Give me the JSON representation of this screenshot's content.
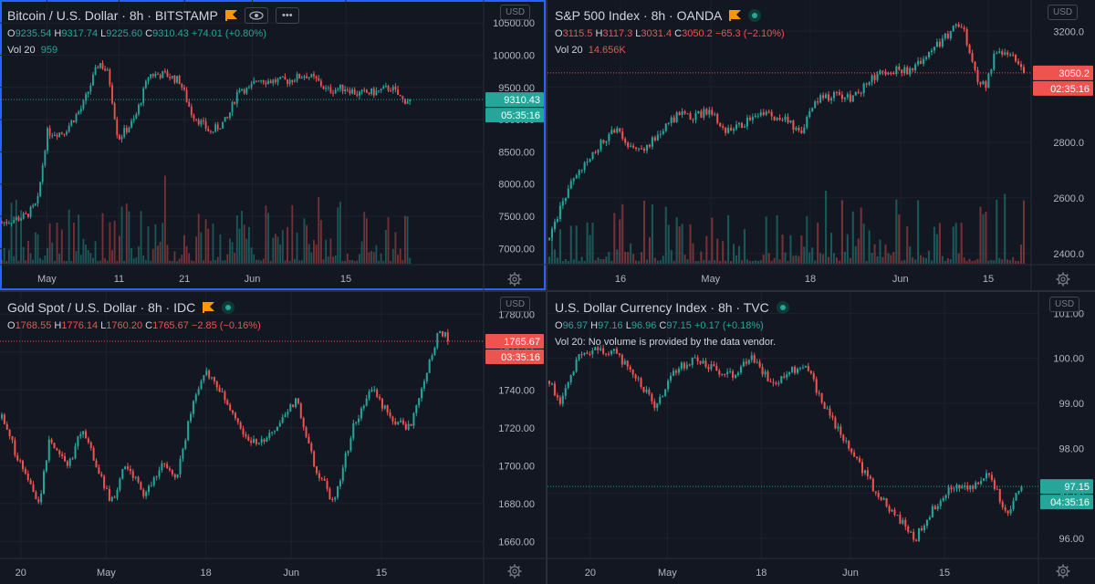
{
  "theme": {
    "background": "#131722",
    "grid": "#1e222d",
    "text": "#b2b5be",
    "up": "#26a69a",
    "down": "#ef5350",
    "active_border": "#2962ff",
    "flag": "#ff9800"
  },
  "panes": [
    {
      "title": "Bitcoin / U.S. Dollar · 8h · BITSTAMP",
      "currency": "USD",
      "icons": [
        "flag-icon",
        "eye-icon",
        "more-icon"
      ],
      "ohlc": {
        "o": "9235.54",
        "h": "9317.74",
        "l": "9225.60",
        "c": "9310.43",
        "change": "+74.01 (+0.80%)"
      },
      "volume_label": "Vol 20",
      "volume_value": "959",
      "price_label": "9310.43",
      "countdown": "05:35:16",
      "direction": "up"
    },
    {
      "title": "S&P 500 Index · 8h · OANDA",
      "currency": "USD",
      "icons": [
        "flag-icon",
        "live-icon"
      ],
      "ohlc": {
        "o": "3115.5",
        "h": "3117.3",
        "l": "3031.4",
        "c": "3050.2",
        "change": "−65.3 (−2.10%)"
      },
      "volume_label": "Vol 20",
      "volume_value": "14.656K",
      "price_label": "3050.2",
      "countdown": "02:35:16",
      "direction": "down"
    },
    {
      "title": "Gold Spot / U.S. Dollar · 8h · IDC",
      "currency": "USD",
      "icons": [
        "flag-icon",
        "live-icon"
      ],
      "ohlc": {
        "o": "1768.55",
        "h": "1776.14",
        "l": "1760.20",
        "c": "1765.67",
        "change": "−2.85 (−0.16%)"
      },
      "volume_label": "",
      "volume_value": "",
      "price_label": "1765.67",
      "countdown": "03:35:16",
      "direction": "down"
    },
    {
      "title": "U.S. Dollar Currency Index · 8h · TVC",
      "currency": "USD",
      "icons": [
        "live-icon"
      ],
      "ohlc": {
        "o": "96.97",
        "h": "97.16",
        "l": "96.96",
        "c": "97.15",
        "change": "+0.17 (+0.18%)"
      },
      "volume_label": "Vol 20: No volume is provided by the data vendor.",
      "volume_value": "",
      "price_label": "97.15",
      "countdown": "04:35:16",
      "direction": "up"
    }
  ],
  "chart_data": [
    {
      "type": "candlestick",
      "title": "Bitcoin / U.S. Dollar · 8h · BITSTAMP",
      "y_ticks": [
        7000,
        7500,
        8000,
        8500,
        9000,
        9500,
        10000,
        10500
      ],
      "y_tick_labels": [
        "7000.00",
        "7500.00",
        "8000.00",
        "8500.00",
        "9000.00",
        "9500.00",
        "10000.00",
        "10500.00"
      ],
      "ylim": [
        6750,
        10630
      ],
      "x_ticks": [
        {
          "t": 0.095,
          "label": "May"
        },
        {
          "t": 0.247,
          "label": "11"
        },
        {
          "t": 0.385,
          "label": "21"
        },
        {
          "t": 0.528,
          "label": "Jun"
        },
        {
          "t": 0.725,
          "label": "15"
        }
      ],
      "current_price": 9310.43,
      "volume": true,
      "series": [
        {
          "t": 0,
          "v": 7400
        },
        {
          "t": 0.05,
          "v": 7500
        },
        {
          "t": 0.075,
          "v": 7700
        },
        {
          "t": 0.095,
          "v": 8800
        },
        {
          "t": 0.13,
          "v": 8800
        },
        {
          "t": 0.17,
          "v": 9200
        },
        {
          "t": 0.205,
          "v": 9900
        },
        {
          "t": 0.225,
          "v": 9700
        },
        {
          "t": 0.245,
          "v": 8700
        },
        {
          "t": 0.28,
          "v": 9000
        },
        {
          "t": 0.31,
          "v": 9700
        },
        {
          "t": 0.345,
          "v": 9700
        },
        {
          "t": 0.375,
          "v": 9600
        },
        {
          "t": 0.4,
          "v": 9100
        },
        {
          "t": 0.44,
          "v": 8800
        },
        {
          "t": 0.475,
          "v": 9000
        },
        {
          "t": 0.5,
          "v": 9500
        },
        {
          "t": 0.52,
          "v": 9450
        },
        {
          "t": 0.54,
          "v": 9650
        },
        {
          "t": 0.56,
          "v": 9600
        },
        {
          "t": 0.6,
          "v": 9600
        },
        {
          "t": 0.64,
          "v": 9700
        },
        {
          "t": 0.665,
          "v": 9600
        },
        {
          "t": 0.685,
          "v": 9450
        },
        {
          "t": 0.725,
          "v": 9500
        },
        {
          "t": 0.75,
          "v": 9400
        },
        {
          "t": 0.79,
          "v": 9430
        },
        {
          "t": 0.82,
          "v": 9500
        },
        {
          "t": 0.845,
          "v": 9300
        },
        {
          "t": 0.86,
          "v": 9310
        }
      ]
    },
    {
      "type": "candlestick",
      "title": "S&P 500 Index · 8h · OANDA",
      "y_ticks": [
        2400,
        2600,
        2800,
        3000,
        3200
      ],
      "y_tick_labels": [
        "2400.0",
        "2600.0",
        "2800.0",
        "3000.0",
        "3200.0"
      ],
      "ylim": [
        2360,
        3260
      ],
      "x_ticks": [
        {
          "t": 0.15,
          "label": "16"
        },
        {
          "t": 0.34,
          "label": "May"
        },
        {
          "t": 0.55,
          "label": "18"
        },
        {
          "t": 0.74,
          "label": "Jun"
        },
        {
          "t": 0.925,
          "label": "15"
        }
      ],
      "current_price": 3050.2,
      "volume": true,
      "series": [
        {
          "t": 0,
          "v": 2450
        },
        {
          "t": 0.03,
          "v": 2600
        },
        {
          "t": 0.07,
          "v": 2720
        },
        {
          "t": 0.1,
          "v": 2780
        },
        {
          "t": 0.14,
          "v": 2850
        },
        {
          "t": 0.17,
          "v": 2780
        },
        {
          "t": 0.2,
          "v": 2780
        },
        {
          "t": 0.24,
          "v": 2850
        },
        {
          "t": 0.28,
          "v": 2910
        },
        {
          "t": 0.3,
          "v": 2890
        },
        {
          "t": 0.32,
          "v": 2900
        },
        {
          "t": 0.34,
          "v": 2920
        },
        {
          "t": 0.37,
          "v": 2830
        },
        {
          "t": 0.42,
          "v": 2880
        },
        {
          "t": 0.46,
          "v": 2900
        },
        {
          "t": 0.5,
          "v": 2880
        },
        {
          "t": 0.53,
          "v": 2830
        },
        {
          "t": 0.56,
          "v": 2950
        },
        {
          "t": 0.6,
          "v": 2970
        },
        {
          "t": 0.64,
          "v": 2960
        },
        {
          "t": 0.68,
          "v": 3030
        },
        {
          "t": 0.72,
          "v": 3060
        },
        {
          "t": 0.76,
          "v": 3060
        },
        {
          "t": 0.8,
          "v": 3120
        },
        {
          "t": 0.84,
          "v": 3190
        },
        {
          "t": 0.86,
          "v": 3230
        },
        {
          "t": 0.875,
          "v": 3200
        },
        {
          "t": 0.9,
          "v": 3030
        },
        {
          "t": 0.92,
          "v": 3000
        },
        {
          "t": 0.94,
          "v": 3130
        },
        {
          "t": 0.96,
          "v": 3110
        },
        {
          "t": 0.98,
          "v": 3110
        },
        {
          "t": 1.0,
          "v": 3050
        }
      ]
    },
    {
      "type": "candlestick",
      "title": "Gold Spot / U.S. Dollar · 8h · IDC",
      "y_ticks": [
        1660,
        1680,
        1700,
        1720,
        1740,
        1760,
        1780
      ],
      "y_tick_labels": [
        "1660.00",
        "1680.00",
        "1700.00",
        "1720.00",
        "1740.00",
        "1760.00",
        "1780.00"
      ],
      "ylim": [
        1651,
        1784
      ],
      "x_ticks": [
        {
          "t": 0.04,
          "label": "20"
        },
        {
          "t": 0.22,
          "label": "May"
        },
        {
          "t": 0.43,
          "label": "18"
        },
        {
          "t": 0.61,
          "label": "Jun"
        },
        {
          "t": 0.8,
          "label": "15"
        }
      ],
      "current_price": 1765.67,
      "volume": false,
      "series": [
        {
          "t": 0,
          "v": 1725
        },
        {
          "t": 0.04,
          "v": 1700
        },
        {
          "t": 0.08,
          "v": 1680
        },
        {
          "t": 0.1,
          "v": 1715
        },
        {
          "t": 0.14,
          "v": 1700
        },
        {
          "t": 0.17,
          "v": 1720
        },
        {
          "t": 0.2,
          "v": 1700
        },
        {
          "t": 0.23,
          "v": 1680
        },
        {
          "t": 0.26,
          "v": 1700
        },
        {
          "t": 0.3,
          "v": 1685
        },
        {
          "t": 0.34,
          "v": 1700
        },
        {
          "t": 0.37,
          "v": 1695
        },
        {
          "t": 0.4,
          "v": 1730
        },
        {
          "t": 0.43,
          "v": 1750
        },
        {
          "t": 0.46,
          "v": 1740
        },
        {
          "t": 0.5,
          "v": 1720
        },
        {
          "t": 0.54,
          "v": 1710
        },
        {
          "t": 0.58,
          "v": 1720
        },
        {
          "t": 0.62,
          "v": 1735
        },
        {
          "t": 0.66,
          "v": 1700
        },
        {
          "t": 0.7,
          "v": 1680
        },
        {
          "t": 0.74,
          "v": 1720
        },
        {
          "t": 0.78,
          "v": 1740
        },
        {
          "t": 0.82,
          "v": 1725
        },
        {
          "t": 0.86,
          "v": 1720
        },
        {
          "t": 0.89,
          "v": 1745
        },
        {
          "t": 0.92,
          "v": 1770
        },
        {
          "t": 0.94,
          "v": 1768
        }
      ]
    },
    {
      "type": "candlestick",
      "title": "U.S. Dollar Currency Index · 8h · TVC",
      "y_ticks": [
        96,
        97,
        98,
        99,
        100,
        101
      ],
      "y_tick_labels": [
        "96.00",
        "97.00",
        "98.00",
        "99.00",
        "100.00",
        "101.00"
      ],
      "ylim": [
        95.55,
        101.15
      ],
      "x_ticks": [
        {
          "t": 0.085,
          "label": "20"
        },
        {
          "t": 0.245,
          "label": "May"
        },
        {
          "t": 0.44,
          "label": "18"
        },
        {
          "t": 0.625,
          "label": "Jun"
        },
        {
          "t": 0.82,
          "label": "15"
        }
      ],
      "current_price": 97.15,
      "volume": false,
      "series": [
        {
          "t": 0,
          "v": 99.5
        },
        {
          "t": 0.025,
          "v": 99.0
        },
        {
          "t": 0.06,
          "v": 100.0
        },
        {
          "t": 0.1,
          "v": 100.2
        },
        {
          "t": 0.14,
          "v": 100.1
        },
        {
          "t": 0.18,
          "v": 99.6
        },
        {
          "t": 0.22,
          "v": 98.9
        },
        {
          "t": 0.26,
          "v": 99.7
        },
        {
          "t": 0.3,
          "v": 100.0
        },
        {
          "t": 0.34,
          "v": 99.8
        },
        {
          "t": 0.38,
          "v": 99.6
        },
        {
          "t": 0.42,
          "v": 100.1
        },
        {
          "t": 0.46,
          "v": 99.4
        },
        {
          "t": 0.5,
          "v": 99.7
        },
        {
          "t": 0.53,
          "v": 99.9
        },
        {
          "t": 0.56,
          "v": 99.2
        },
        {
          "t": 0.6,
          "v": 98.4
        },
        {
          "t": 0.64,
          "v": 97.7
        },
        {
          "t": 0.68,
          "v": 97.0
        },
        {
          "t": 0.71,
          "v": 96.6
        },
        {
          "t": 0.74,
          "v": 96.3
        },
        {
          "t": 0.76,
          "v": 96.0
        },
        {
          "t": 0.8,
          "v": 96.7
        },
        {
          "t": 0.84,
          "v": 97.2
        },
        {
          "t": 0.88,
          "v": 97.1
        },
        {
          "t": 0.91,
          "v": 97.5
        },
        {
          "t": 0.93,
          "v": 97.0
        },
        {
          "t": 0.95,
          "v": 96.6
        },
        {
          "t": 0.98,
          "v": 97.15
        }
      ]
    }
  ]
}
